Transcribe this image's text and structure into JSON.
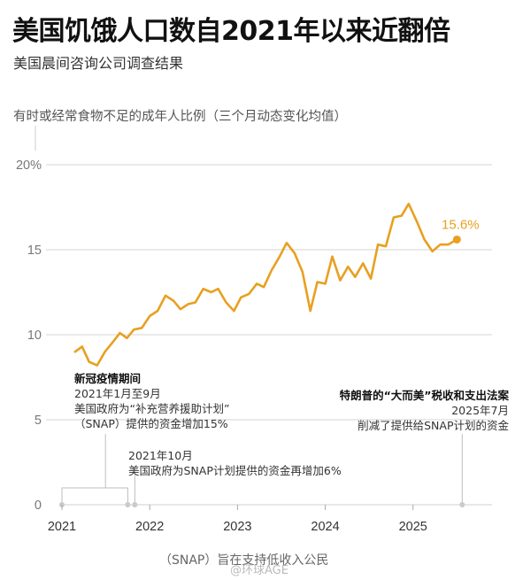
{
  "title": "美国饥饿人口数自2021年以来近翻倍",
  "subtitle": "美国晨间咨询公司调查结果",
  "metric_label": "有时或经常食物不足的成年人比例（三个月动态变化均值）",
  "accent_color": "#E8A020",
  "annotations": [
    {
      "head": "新冠疫情期间",
      "lines": [
        "2021年1月至9月",
        "美国政府为“补充营养援助计划”",
        "（SNAP）提供的资金增加15%"
      ]
    },
    {
      "head": "",
      "lines": [
        "2021年10月",
        "美国政府为SNAP计划提供的资金再增加6%"
      ]
    },
    {
      "head": "特朗普的“大而美”税收和支出法案",
      "lines": [
        "2025年7月",
        "削减了提供给SNAP计划的资金"
      ]
    }
  ],
  "footnote": "（SNAP）旨在支持低收入公民",
  "watermark": "@环球AGE",
  "chart_data": {
    "type": "line",
    "title": "",
    "xlabel": "",
    "ylabel": "有时或经常食物不足的成年人比例（三个月动态变化均值）",
    "y_unit": "%",
    "ylim": [
      0,
      20
    ],
    "yticks": [
      0,
      5,
      10,
      15,
      20
    ],
    "ytick_labels": [
      "0",
      "5",
      "10",
      "15",
      "20%"
    ],
    "xlim": [
      2021.0,
      2025.9
    ],
    "xticks": [
      2021,
      2022,
      2023,
      2024,
      2025
    ],
    "xtick_labels": [
      "2021",
      "2022",
      "2023",
      "2024",
      "2025"
    ],
    "grid": true,
    "series": [
      {
        "x": [
          2021.15,
          2021.23,
          2021.31,
          2021.4,
          2021.49,
          2021.57,
          2021.66,
          2021.74,
          2021.82,
          2021.91,
          2022.0,
          2022.09,
          2022.18,
          2022.27,
          2022.35,
          2022.44,
          2022.52,
          2022.61,
          2022.7,
          2022.78,
          2022.87,
          2022.96,
          2023.04,
          2023.13,
          2023.22,
          2023.3,
          2023.39,
          2023.48,
          2023.56,
          2023.65,
          2023.74,
          2023.83,
          2023.91,
          2024.0,
          2024.08,
          2024.17,
          2024.26,
          2024.34,
          2024.43,
          2024.52,
          2024.6,
          2024.69,
          2024.78,
          2024.87,
          2024.95,
          2025.04,
          2025.13,
          2025.22,
          2025.31,
          2025.4
        ],
        "values": [
          9.0,
          9.3,
          8.4,
          8.2,
          9.0,
          9.5,
          10.1,
          9.8,
          10.3,
          10.4,
          11.1,
          11.4,
          12.3,
          12.0,
          11.5,
          11.8,
          11.9,
          12.7,
          12.5,
          12.7,
          11.9,
          11.4,
          12.2,
          12.4,
          13.0,
          12.8,
          13.8,
          14.6,
          15.4,
          14.8,
          13.7,
          11.4,
          13.1,
          13.0,
          14.6,
          13.2,
          14.0,
          13.4,
          14.2,
          13.3,
          15.3,
          15.2,
          16.9,
          17.0,
          17.7,
          16.7,
          15.6,
          14.9,
          15.3,
          15.3
        ],
        "end_point": {
          "x": 2025.5,
          "value": 15.6
        },
        "end_label": "15.6%"
      }
    ],
    "event_markers": [
      {
        "x_start": 2021.0,
        "x_end": 2021.75,
        "label_ref": 0
      },
      {
        "x": 2021.83,
        "label_ref": 1
      },
      {
        "x": 2025.56,
        "label_ref": 2
      }
    ]
  }
}
